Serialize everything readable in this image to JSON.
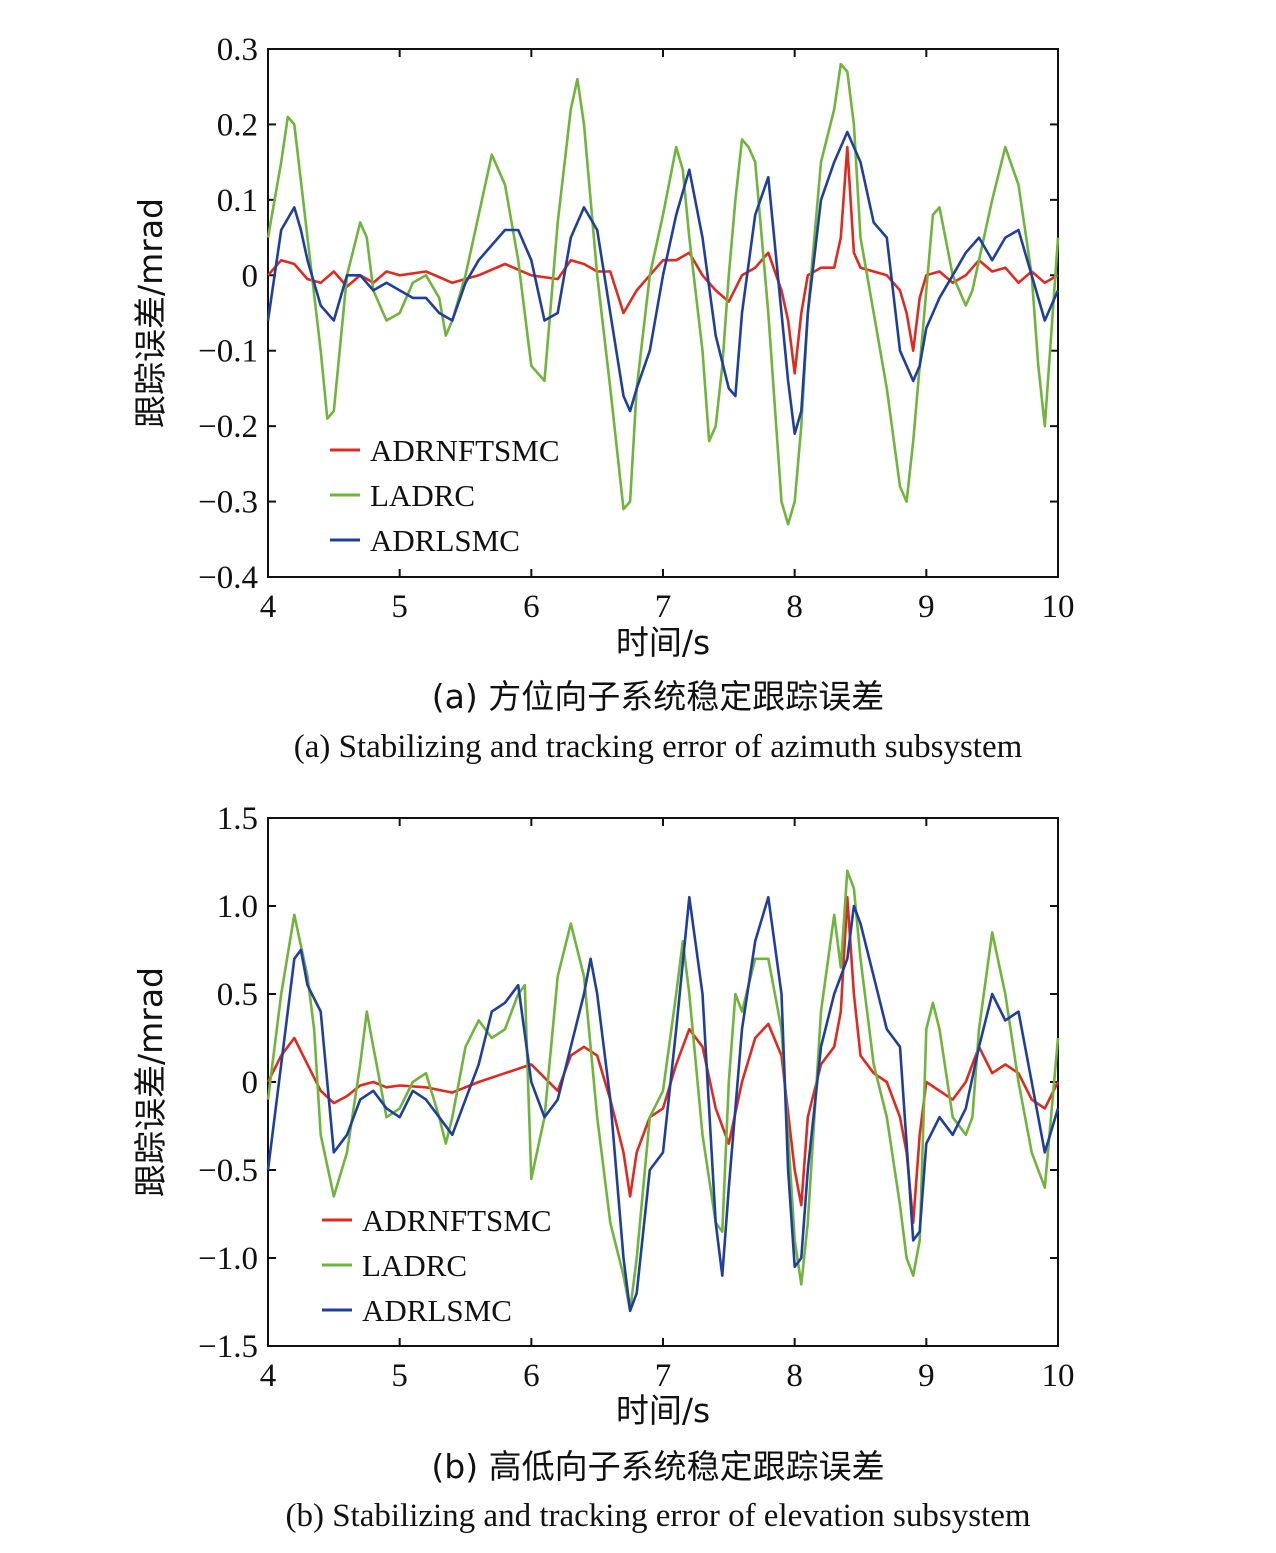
{
  "colors": {
    "ADRNFTSMC": "#e02a20",
    "LADRC": "#6fb53a",
    "ADRLSMC": "#1f3f9e"
  },
  "chart_data": [
    {
      "type": "line",
      "xlabel": "时间/s",
      "ylabel": "跟踪误差/mrad",
      "xlim": [
        4,
        10
      ],
      "ylim": [
        -0.4,
        0.3
      ],
      "xticks": [
        "4",
        "5",
        "6",
        "7",
        "8",
        "9",
        "10"
      ],
      "yticks": [
        "0.3",
        "0.2",
        "0.1",
        "0",
        "−0.1",
        "−0.2",
        "−0.3",
        "−0.4"
      ],
      "legend_position": "lower-left",
      "caption_zh": "(a) 方位向子系统稳定跟踪误差",
      "caption_en": "(a) Stabilizing and tracking error of azimuth subsystem",
      "series": [
        {
          "name": "ADRNFTSMC",
          "color": "#e02a20",
          "x": [
            4.0,
            4.1,
            4.2,
            4.3,
            4.4,
            4.5,
            4.6,
            4.7,
            4.8,
            4.9,
            5.0,
            5.2,
            5.4,
            5.6,
            5.8,
            6.0,
            6.2,
            6.3,
            6.4,
            6.5,
            6.6,
            6.7,
            6.8,
            6.9,
            7.0,
            7.1,
            7.2,
            7.3,
            7.4,
            7.5,
            7.6,
            7.7,
            7.8,
            7.9,
            7.95,
            8.0,
            8.05,
            8.1,
            8.2,
            8.3,
            8.35,
            8.4,
            8.45,
            8.5,
            8.6,
            8.7,
            8.8,
            8.85,
            8.9,
            8.95,
            9.0,
            9.1,
            9.2,
            9.3,
            9.4,
            9.5,
            9.6,
            9.7,
            9.8,
            9.9,
            10.0
          ],
          "y": [
            0.0,
            0.02,
            0.015,
            -0.005,
            -0.01,
            0.005,
            -0.015,
            0.0,
            -0.01,
            0.005,
            0.0,
            0.005,
            -0.01,
            0.0,
            0.015,
            0.0,
            -0.005,
            0.02,
            0.015,
            0.005,
            0.005,
            -0.05,
            -0.02,
            0.0,
            0.02,
            0.02,
            0.03,
            0.0,
            -0.02,
            -0.035,
            0.0,
            0.01,
            0.03,
            -0.02,
            -0.06,
            -0.13,
            -0.05,
            0.0,
            0.01,
            0.01,
            0.05,
            0.17,
            0.03,
            0.01,
            0.005,
            0.0,
            -0.02,
            -0.05,
            -0.1,
            -0.03,
            0.0,
            0.005,
            -0.01,
            0.0,
            0.02,
            0.005,
            0.01,
            -0.01,
            0.005,
            -0.01,
            0.0
          ]
        },
        {
          "name": "LADRC",
          "color": "#6fb53a",
          "x": [
            4.0,
            4.1,
            4.15,
            4.2,
            4.3,
            4.4,
            4.45,
            4.5,
            4.6,
            4.7,
            4.75,
            4.8,
            4.9,
            5.0,
            5.1,
            5.2,
            5.3,
            5.35,
            5.4,
            5.5,
            5.6,
            5.7,
            5.75,
            5.8,
            5.9,
            6.0,
            6.1,
            6.2,
            6.3,
            6.35,
            6.4,
            6.5,
            6.6,
            6.7,
            6.75,
            6.8,
            6.9,
            7.0,
            7.1,
            7.15,
            7.2,
            7.3,
            7.35,
            7.4,
            7.45,
            7.5,
            7.55,
            7.6,
            7.65,
            7.7,
            7.8,
            7.9,
            7.95,
            8.0,
            8.05,
            8.1,
            8.2,
            8.3,
            8.35,
            8.4,
            8.45,
            8.5,
            8.6,
            8.7,
            8.8,
            8.85,
            8.9,
            9.0,
            9.05,
            9.1,
            9.2,
            9.3,
            9.35,
            9.4,
            9.5,
            9.6,
            9.7,
            9.8,
            9.85,
            9.9,
            10.0
          ],
          "y": [
            0.05,
            0.15,
            0.21,
            0.2,
            0.05,
            -0.1,
            -0.19,
            -0.18,
            0.0,
            0.07,
            0.05,
            -0.02,
            -0.06,
            -0.05,
            -0.01,
            0.0,
            -0.03,
            -0.08,
            -0.06,
            0.0,
            0.08,
            0.16,
            0.14,
            0.12,
            0.02,
            -0.12,
            -0.14,
            0.07,
            0.22,
            0.26,
            0.2,
            0.0,
            -0.15,
            -0.31,
            -0.3,
            -0.15,
            0.0,
            0.08,
            0.17,
            0.14,
            0.05,
            -0.1,
            -0.22,
            -0.2,
            -0.12,
            0.0,
            0.1,
            0.18,
            0.17,
            0.15,
            -0.05,
            -0.3,
            -0.33,
            -0.3,
            -0.2,
            -0.05,
            0.15,
            0.22,
            0.28,
            0.27,
            0.2,
            0.05,
            -0.05,
            -0.15,
            -0.28,
            -0.3,
            -0.22,
            -0.02,
            0.08,
            0.09,
            0.0,
            -0.04,
            -0.02,
            0.02,
            0.1,
            0.17,
            0.12,
            0.0,
            -0.12,
            -0.2,
            0.05
          ]
        },
        {
          "name": "ADRLSMC",
          "color": "#1f3f9e",
          "x": [
            4.0,
            4.1,
            4.2,
            4.25,
            4.3,
            4.4,
            4.5,
            4.6,
            4.7,
            4.8,
            4.9,
            5.0,
            5.1,
            5.2,
            5.3,
            5.4,
            5.5,
            5.6,
            5.7,
            5.8,
            5.9,
            6.0,
            6.1,
            6.2,
            6.3,
            6.4,
            6.5,
            6.6,
            6.7,
            6.75,
            6.8,
            6.9,
            7.0,
            7.1,
            7.2,
            7.3,
            7.4,
            7.5,
            7.55,
            7.6,
            7.7,
            7.8,
            7.9,
            7.95,
            8.0,
            8.05,
            8.1,
            8.2,
            8.3,
            8.4,
            8.45,
            8.5,
            8.6,
            8.7,
            8.8,
            8.9,
            8.95,
            9.0,
            9.1,
            9.2,
            9.3,
            9.4,
            9.5,
            9.6,
            9.7,
            9.8,
            9.9,
            10.0
          ],
          "y": [
            -0.06,
            0.06,
            0.09,
            0.06,
            0.02,
            -0.04,
            -0.06,
            0.0,
            0.0,
            -0.02,
            -0.01,
            -0.02,
            -0.03,
            -0.03,
            -0.05,
            -0.06,
            -0.01,
            0.02,
            0.04,
            0.06,
            0.06,
            0.02,
            -0.06,
            -0.05,
            0.05,
            0.09,
            0.06,
            -0.05,
            -0.16,
            -0.18,
            -0.15,
            -0.1,
            0.0,
            0.08,
            0.14,
            0.05,
            -0.08,
            -0.15,
            -0.16,
            -0.05,
            0.08,
            0.13,
            -0.05,
            -0.14,
            -0.21,
            -0.18,
            -0.05,
            0.1,
            0.15,
            0.19,
            0.17,
            0.15,
            0.07,
            0.05,
            -0.1,
            -0.14,
            -0.12,
            -0.07,
            -0.03,
            0.0,
            0.03,
            0.05,
            0.02,
            0.05,
            0.06,
            0.0,
            -0.06,
            -0.02
          ]
        }
      ]
    },
    {
      "type": "line",
      "xlabel": "时间/s",
      "ylabel": "跟踪误差/mrad",
      "xlim": [
        4,
        10
      ],
      "ylim": [
        -1.5,
        1.5
      ],
      "xticks": [
        "4",
        "5",
        "6",
        "7",
        "8",
        "9",
        "10"
      ],
      "yticks": [
        "1.5",
        "1.0",
        "0.5",
        "0",
        "−0.5",
        "−1.0",
        "−1.5"
      ],
      "legend_position": "lower-left",
      "caption_zh": "(b) 高低向子系统稳定跟踪误差",
      "caption_en": "(b) Stabilizing and tracking error of elevation subsystem",
      "series": [
        {
          "name": "ADRNFTSMC",
          "color": "#e02a20",
          "x": [
            4.0,
            4.1,
            4.2,
            4.3,
            4.4,
            4.5,
            4.6,
            4.7,
            4.8,
            4.9,
            5.0,
            5.2,
            5.4,
            5.6,
            5.8,
            6.0,
            6.2,
            6.3,
            6.4,
            6.5,
            6.6,
            6.7,
            6.75,
            6.8,
            6.9,
            7.0,
            7.1,
            7.2,
            7.3,
            7.4,
            7.5,
            7.6,
            7.7,
            7.8,
            7.9,
            8.0,
            8.05,
            8.1,
            8.2,
            8.3,
            8.35,
            8.4,
            8.45,
            8.5,
            8.6,
            8.7,
            8.8,
            8.85,
            8.9,
            8.95,
            9.0,
            9.1,
            9.2,
            9.3,
            9.4,
            9.5,
            9.6,
            9.7,
            9.8,
            9.9,
            10.0
          ],
          "y": [
            0.0,
            0.15,
            0.25,
            0.1,
            -0.05,
            -0.12,
            -0.08,
            -0.02,
            0.0,
            -0.03,
            -0.02,
            -0.03,
            -0.06,
            0.0,
            0.05,
            0.1,
            -0.05,
            0.15,
            0.2,
            0.15,
            -0.1,
            -0.4,
            -0.65,
            -0.4,
            -0.2,
            -0.15,
            0.1,
            0.3,
            0.2,
            -0.15,
            -0.35,
            0.0,
            0.25,
            0.33,
            0.15,
            -0.5,
            -0.7,
            -0.2,
            0.1,
            0.2,
            0.4,
            1.05,
            0.5,
            0.15,
            0.05,
            0.0,
            -0.2,
            -0.4,
            -0.8,
            -0.3,
            0.0,
            -0.05,
            -0.1,
            0.0,
            0.2,
            0.05,
            0.1,
            0.05,
            -0.1,
            -0.15,
            0.0
          ]
        },
        {
          "name": "LADRC",
          "color": "#6fb53a",
          "x": [
            4.0,
            4.1,
            4.2,
            4.3,
            4.35,
            4.4,
            4.5,
            4.6,
            4.7,
            4.75,
            4.8,
            4.9,
            5.0,
            5.1,
            5.2,
            5.3,
            5.35,
            5.4,
            5.5,
            5.6,
            5.7,
            5.8,
            5.9,
            5.95,
            6.0,
            6.1,
            6.2,
            6.3,
            6.4,
            6.5,
            6.6,
            6.7,
            6.75,
            6.8,
            6.9,
            7.0,
            7.1,
            7.15,
            7.2,
            7.3,
            7.4,
            7.45,
            7.5,
            7.55,
            7.6,
            7.7,
            7.8,
            7.9,
            8.0,
            8.05,
            8.1,
            8.2,
            8.3,
            8.35,
            8.4,
            8.45,
            8.5,
            8.6,
            8.7,
            8.8,
            8.85,
            8.9,
            8.95,
            9.0,
            9.05,
            9.1,
            9.2,
            9.3,
            9.35,
            9.4,
            9.5,
            9.6,
            9.7,
            9.8,
            9.9,
            10.0
          ],
          "y": [
            -0.1,
            0.5,
            0.95,
            0.6,
            0.3,
            -0.3,
            -0.65,
            -0.4,
            0.1,
            0.4,
            0.2,
            -0.2,
            -0.15,
            0.0,
            0.05,
            -0.2,
            -0.35,
            -0.2,
            0.2,
            0.35,
            0.25,
            0.3,
            0.5,
            0.55,
            -0.55,
            -0.2,
            0.6,
            0.9,
            0.6,
            -0.2,
            -0.8,
            -1.1,
            -1.3,
            -1.0,
            -0.2,
            -0.05,
            0.5,
            0.8,
            0.5,
            -0.3,
            -0.8,
            -0.85,
            0.0,
            0.5,
            0.4,
            0.7,
            0.7,
            0.3,
            -0.9,
            -1.15,
            -0.8,
            0.4,
            0.95,
            0.65,
            1.2,
            1.1,
            0.7,
            0.1,
            -0.2,
            -0.7,
            -1.0,
            -1.1,
            -0.9,
            0.3,
            0.45,
            0.3,
            -0.2,
            -0.3,
            -0.2,
            0.3,
            0.85,
            0.5,
            0.0,
            -0.4,
            -0.6,
            0.25
          ]
        },
        {
          "name": "ADRLSMC",
          "color": "#1f3f9e",
          "x": [
            4.0,
            4.1,
            4.2,
            4.25,
            4.3,
            4.4,
            4.5,
            4.6,
            4.7,
            4.8,
            4.9,
            5.0,
            5.1,
            5.2,
            5.3,
            5.4,
            5.5,
            5.6,
            5.7,
            5.8,
            5.9,
            6.0,
            6.1,
            6.2,
            6.3,
            6.4,
            6.45,
            6.5,
            6.6,
            6.7,
            6.75,
            6.8,
            6.9,
            7.0,
            7.1,
            7.2,
            7.3,
            7.4,
            7.45,
            7.5,
            7.6,
            7.7,
            7.8,
            7.9,
            7.95,
            8.0,
            8.05,
            8.1,
            8.2,
            8.3,
            8.4,
            8.45,
            8.5,
            8.6,
            8.7,
            8.8,
            8.9,
            8.95,
            9.0,
            9.1,
            9.2,
            9.3,
            9.4,
            9.5,
            9.6,
            9.7,
            9.8,
            9.9,
            10.0
          ],
          "y": [
            -0.5,
            0.1,
            0.7,
            0.75,
            0.55,
            0.4,
            -0.4,
            -0.3,
            -0.1,
            -0.05,
            -0.15,
            -0.2,
            -0.05,
            -0.1,
            -0.2,
            -0.3,
            -0.1,
            0.1,
            0.4,
            0.45,
            0.55,
            0.0,
            -0.2,
            -0.1,
            0.2,
            0.5,
            0.7,
            0.5,
            -0.1,
            -1.0,
            -1.3,
            -1.2,
            -0.5,
            -0.4,
            0.3,
            1.05,
            0.5,
            -0.8,
            -1.1,
            -0.6,
            0.3,
            0.8,
            1.05,
            0.5,
            -0.5,
            -1.05,
            -1.0,
            -0.5,
            0.2,
            0.5,
            0.7,
            1.0,
            0.9,
            0.6,
            0.3,
            0.2,
            -0.9,
            -0.85,
            -0.35,
            -0.2,
            -0.3,
            -0.15,
            0.2,
            0.5,
            0.35,
            0.4,
            0.0,
            -0.4,
            -0.15
          ]
        }
      ]
    }
  ]
}
